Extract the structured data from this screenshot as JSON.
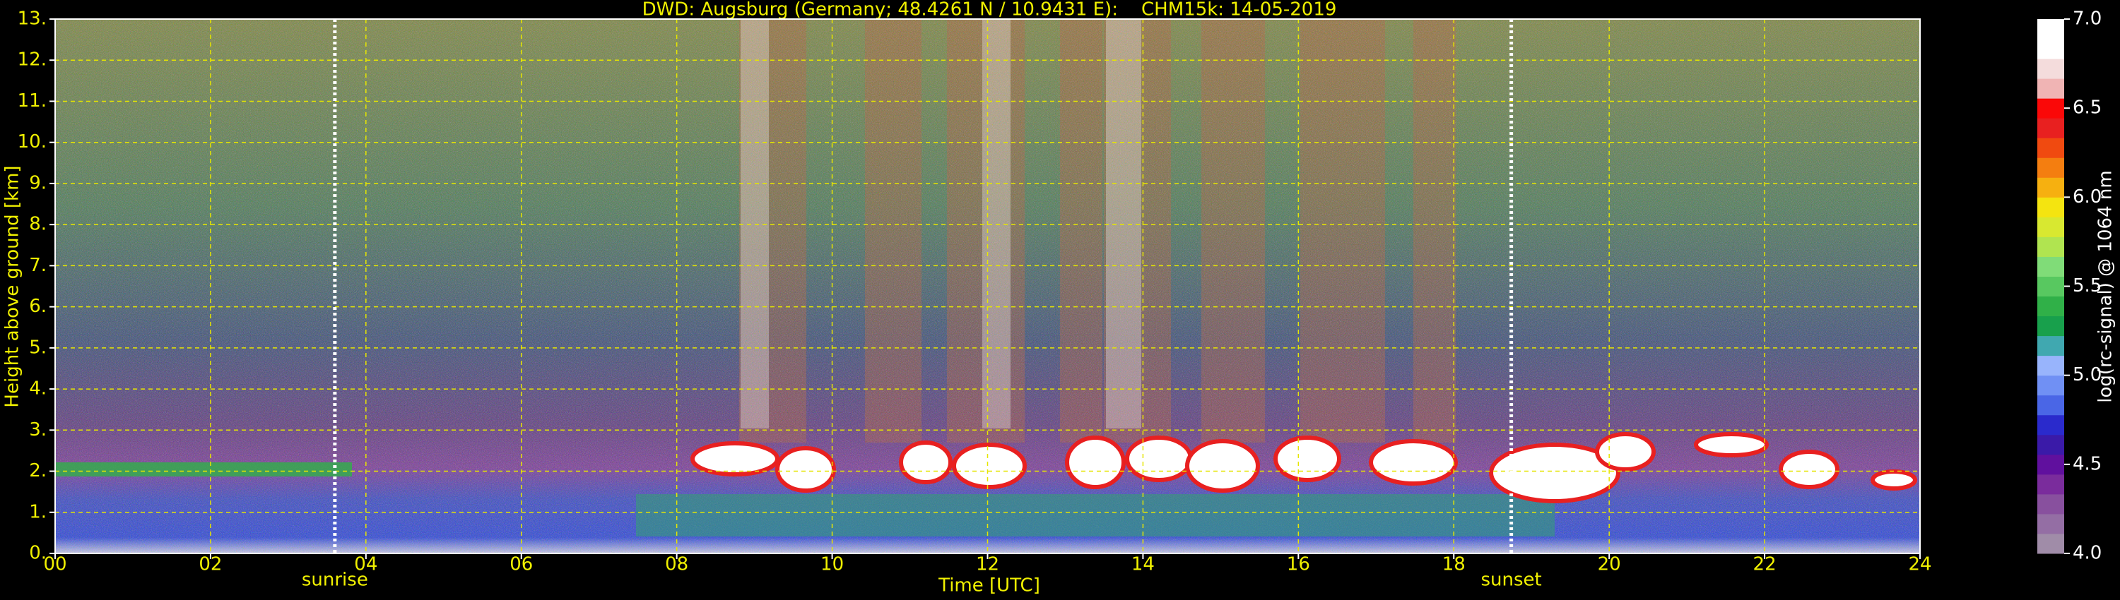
{
  "chart_data": {
    "type": "heatmap",
    "title": "DWD: Augsburg (Germany; 48.4261 N / 10.9431 E):    CHM15k: 14-05-2019",
    "xlabel": "Time [UTC]",
    "ylabel": "Height above ground [km]",
    "xlim": [
      0,
      24
    ],
    "xticks": [
      {
        "value": 0,
        "label": "00"
      },
      {
        "value": 2,
        "label": "02"
      },
      {
        "value": 4,
        "label": "04"
      },
      {
        "value": 6,
        "label": "06"
      },
      {
        "value": 8,
        "label": "08"
      },
      {
        "value": 10,
        "label": "10"
      },
      {
        "value": 12,
        "label": "12"
      },
      {
        "value": 14,
        "label": "14"
      },
      {
        "value": 16,
        "label": "16"
      },
      {
        "value": 18,
        "label": "18"
      },
      {
        "value": 20,
        "label": "20"
      },
      {
        "value": 22,
        "label": "22"
      },
      {
        "value": 24,
        "label": "24"
      }
    ],
    "ylim": [
      0,
      13
    ],
    "yticks": [
      {
        "value": 0,
        "label": "0."
      },
      {
        "value": 1,
        "label": "1."
      },
      {
        "value": 2,
        "label": "2."
      },
      {
        "value": 3,
        "label": "3."
      },
      {
        "value": 4,
        "label": "4."
      },
      {
        "value": 5,
        "label": "5."
      },
      {
        "value": 6,
        "label": "6."
      },
      {
        "value": 7,
        "label": "7."
      },
      {
        "value": 8,
        "label": "8."
      },
      {
        "value": 9,
        "label": "9."
      },
      {
        "value": 10,
        "label": "10."
      },
      {
        "value": 11,
        "label": "11."
      },
      {
        "value": 12,
        "label": "12."
      },
      {
        "value": 13,
        "label": "13."
      }
    ],
    "grid": true,
    "grid_color": "#e6e600",
    "annotations": [
      {
        "x": 3.6,
        "label": "sunrise"
      },
      {
        "x": 18.74,
        "label": "sunset"
      }
    ],
    "colorbar": {
      "label": "log(rc-signal) @ 1064 nm",
      "lim": [
        4,
        7
      ],
      "ticks": [
        {
          "value": 4,
          "label": "4.0"
        },
        {
          "value": 4.5,
          "label": "4.5"
        },
        {
          "value": 5,
          "label": "5.0"
        },
        {
          "value": 5.5,
          "label": "5.5"
        },
        {
          "value": 6,
          "label": "6.0"
        },
        {
          "value": 6.5,
          "label": "6.5"
        },
        {
          "value": 7,
          "label": "7.0"
        }
      ],
      "colors": [
        "#a08ca8",
        "#946ea4",
        "#88509e",
        "#7a2c9c",
        "#60109e",
        "#3a1aa8",
        "#2a2acc",
        "#4a66e6",
        "#7090f4",
        "#98b4fc",
        "#40a8b0",
        "#18a04c",
        "#30b048",
        "#58c860",
        "#80dc78",
        "#b0e450",
        "#d8e830",
        "#f4e410",
        "#f6b010",
        "#f47e10",
        "#f04a10",
        "#e82020",
        "#fa0808",
        "#f0b4b4",
        "#f4dcdc",
        "#ffffff",
        "#ffffff"
      ]
    }
  }
}
